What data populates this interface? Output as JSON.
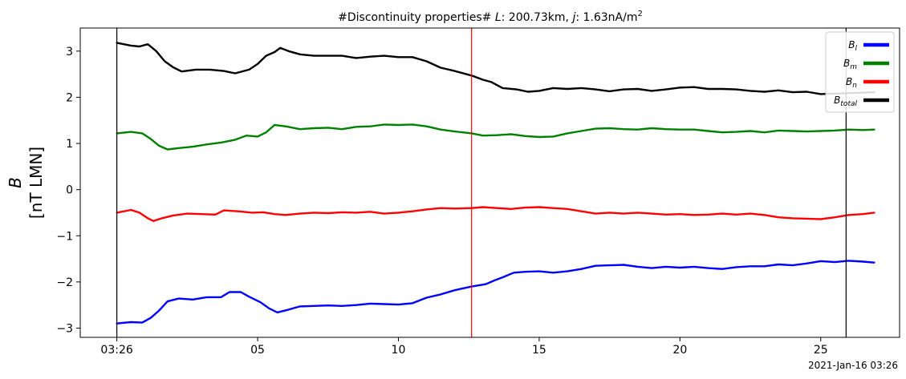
{
  "chart_data": {
    "type": "line",
    "title": "#Discontinuity properties# L: 200.73km, j: 1.63nA/m²",
    "title_parts": {
      "prefix": "#Discontinuity properties# ",
      "L_sym": "L",
      "L_val": ": 200.73km, ",
      "j_sym": "j",
      "j_val": ": 1.63nA/m",
      "j_exp": "2"
    },
    "ylabel": {
      "symbol": "B",
      "unit": "[nT LMN]"
    },
    "xlabel_date": "2021-Jan-16 03:26",
    "x_unit": "seconds after 03:26:00",
    "xlim": [
      -1.3,
      27.8
    ],
    "ylim": [
      -3.2,
      3.5
    ],
    "x_ticks": [
      {
        "value": 0,
        "label": "03:26"
      },
      {
        "value": 5,
        "label": "05"
      },
      {
        "value": 10,
        "label": "10"
      },
      {
        "value": 15,
        "label": "15"
      },
      {
        "value": 20,
        "label": "20"
      },
      {
        "value": 25,
        "label": "25"
      }
    ],
    "y_ticks": [
      {
        "value": 3,
        "label": "3"
      },
      {
        "value": 2,
        "label": "2"
      },
      {
        "value": 1,
        "label": "1"
      },
      {
        "value": 0,
        "label": "0"
      },
      {
        "value": -1,
        "label": "−1"
      },
      {
        "value": -2,
        "label": "−2"
      },
      {
        "value": -3,
        "label": "−3"
      }
    ],
    "vlines": [
      {
        "x": 0,
        "color": "#000000"
      },
      {
        "x": 12.6,
        "color": "#ff0000"
      },
      {
        "x": 25.9,
        "color": "#000000"
      }
    ],
    "legend": {
      "placement": "top-right"
    },
    "series": [
      {
        "legend_base": "B",
        "legend_sub": "l",
        "color": "#0000ff",
        "points": [
          [
            0,
            -2.9
          ],
          [
            0.5,
            -2.87
          ],
          [
            0.9,
            -2.88
          ],
          [
            1.2,
            -2.78
          ],
          [
            1.5,
            -2.62
          ],
          [
            1.8,
            -2.42
          ],
          [
            2.2,
            -2.36
          ],
          [
            2.7,
            -2.38
          ],
          [
            3.2,
            -2.33
          ],
          [
            3.7,
            -2.33
          ],
          [
            4.0,
            -2.22
          ],
          [
            4.4,
            -2.22
          ],
          [
            4.7,
            -2.32
          ],
          [
            5.1,
            -2.44
          ],
          [
            5.4,
            -2.57
          ],
          [
            5.7,
            -2.66
          ],
          [
            6.1,
            -2.6
          ],
          [
            6.5,
            -2.53
          ],
          [
            7.0,
            -2.52
          ],
          [
            7.5,
            -2.51
          ],
          [
            8.0,
            -2.52
          ],
          [
            8.5,
            -2.5
          ],
          [
            9.0,
            -2.47
          ],
          [
            9.5,
            -2.48
          ],
          [
            10.0,
            -2.49
          ],
          [
            10.5,
            -2.46
          ],
          [
            11.0,
            -2.34
          ],
          [
            11.5,
            -2.27
          ],
          [
            12.0,
            -2.18
          ],
          [
            12.6,
            -2.1
          ],
          [
            13.1,
            -2.05
          ],
          [
            13.4,
            -1.97
          ],
          [
            13.7,
            -1.9
          ],
          [
            14.1,
            -1.8
          ],
          [
            14.5,
            -1.78
          ],
          [
            15.0,
            -1.77
          ],
          [
            15.5,
            -1.8
          ],
          [
            16.0,
            -1.77
          ],
          [
            16.5,
            -1.72
          ],
          [
            17.0,
            -1.65
          ],
          [
            17.5,
            -1.64
          ],
          [
            18.0,
            -1.63
          ],
          [
            18.5,
            -1.67
          ],
          [
            19.0,
            -1.7
          ],
          [
            19.5,
            -1.67
          ],
          [
            20.0,
            -1.69
          ],
          [
            20.5,
            -1.67
          ],
          [
            21.0,
            -1.7
          ],
          [
            21.5,
            -1.72
          ],
          [
            22.0,
            -1.68
          ],
          [
            22.5,
            -1.66
          ],
          [
            23.0,
            -1.66
          ],
          [
            23.5,
            -1.62
          ],
          [
            24.0,
            -1.64
          ],
          [
            24.5,
            -1.6
          ],
          [
            25.0,
            -1.55
          ],
          [
            25.5,
            -1.57
          ],
          [
            26.0,
            -1.54
          ],
          [
            26.5,
            -1.56
          ],
          [
            26.9,
            -1.58
          ]
        ]
      },
      {
        "legend_base": "B",
        "legend_sub": "m",
        "color": "#008000",
        "points": [
          [
            0,
            1.22
          ],
          [
            0.5,
            1.25
          ],
          [
            0.9,
            1.22
          ],
          [
            1.2,
            1.1
          ],
          [
            1.5,
            0.95
          ],
          [
            1.8,
            0.87
          ],
          [
            2.2,
            0.9
          ],
          [
            2.7,
            0.93
          ],
          [
            3.2,
            0.98
          ],
          [
            3.7,
            1.02
          ],
          [
            4.2,
            1.08
          ],
          [
            4.6,
            1.17
          ],
          [
            5.0,
            1.15
          ],
          [
            5.3,
            1.24
          ],
          [
            5.6,
            1.4
          ],
          [
            6.0,
            1.37
          ],
          [
            6.5,
            1.31
          ],
          [
            7.0,
            1.33
          ],
          [
            7.5,
            1.34
          ],
          [
            8.0,
            1.31
          ],
          [
            8.5,
            1.36
          ],
          [
            9.0,
            1.37
          ],
          [
            9.5,
            1.41
          ],
          [
            10.0,
            1.4
          ],
          [
            10.5,
            1.41
          ],
          [
            11.0,
            1.37
          ],
          [
            11.5,
            1.3
          ],
          [
            12.0,
            1.26
          ],
          [
            12.6,
            1.22
          ],
          [
            13.0,
            1.17
          ],
          [
            13.5,
            1.18
          ],
          [
            14.0,
            1.2
          ],
          [
            14.5,
            1.16
          ],
          [
            15.0,
            1.14
          ],
          [
            15.5,
            1.15
          ],
          [
            16.0,
            1.22
          ],
          [
            16.5,
            1.27
          ],
          [
            17.0,
            1.32
          ],
          [
            17.5,
            1.33
          ],
          [
            18.0,
            1.31
          ],
          [
            18.5,
            1.3
          ],
          [
            19.0,
            1.33
          ],
          [
            19.5,
            1.31
          ],
          [
            20.0,
            1.3
          ],
          [
            20.5,
            1.3
          ],
          [
            21.0,
            1.27
          ],
          [
            21.5,
            1.24
          ],
          [
            22.0,
            1.25
          ],
          [
            22.5,
            1.27
          ],
          [
            23.0,
            1.24
          ],
          [
            23.5,
            1.28
          ],
          [
            24.0,
            1.27
          ],
          [
            24.5,
            1.26
          ],
          [
            25.0,
            1.27
          ],
          [
            25.5,
            1.28
          ],
          [
            26.0,
            1.3
          ],
          [
            26.5,
            1.29
          ],
          [
            26.9,
            1.3
          ]
        ]
      },
      {
        "legend_base": "B",
        "legend_sub": "n",
        "color": "#ff0000",
        "points": [
          [
            0,
            -0.5
          ],
          [
            0.5,
            -0.44
          ],
          [
            0.8,
            -0.5
          ],
          [
            1.1,
            -0.62
          ],
          [
            1.3,
            -0.68
          ],
          [
            1.6,
            -0.62
          ],
          [
            2.0,
            -0.56
          ],
          [
            2.5,
            -0.52
          ],
          [
            3.0,
            -0.53
          ],
          [
            3.5,
            -0.54
          ],
          [
            3.8,
            -0.45
          ],
          [
            4.3,
            -0.47
          ],
          [
            4.8,
            -0.5
          ],
          [
            5.2,
            -0.49
          ],
          [
            5.6,
            -0.53
          ],
          [
            6.0,
            -0.55
          ],
          [
            6.5,
            -0.52
          ],
          [
            7.0,
            -0.5
          ],
          [
            7.5,
            -0.51
          ],
          [
            8.0,
            -0.49
          ],
          [
            8.5,
            -0.5
          ],
          [
            9.0,
            -0.48
          ],
          [
            9.5,
            -0.52
          ],
          [
            10.0,
            -0.5
          ],
          [
            10.5,
            -0.47
          ],
          [
            11.0,
            -0.43
          ],
          [
            11.5,
            -0.4
          ],
          [
            12.0,
            -0.41
          ],
          [
            12.6,
            -0.4
          ],
          [
            13.0,
            -0.38
          ],
          [
            13.5,
            -0.4
          ],
          [
            14.0,
            -0.42
          ],
          [
            14.5,
            -0.39
          ],
          [
            15.0,
            -0.38
          ],
          [
            15.5,
            -0.4
          ],
          [
            16.0,
            -0.42
          ],
          [
            16.5,
            -0.47
          ],
          [
            17.0,
            -0.52
          ],
          [
            17.5,
            -0.5
          ],
          [
            18.0,
            -0.52
          ],
          [
            18.5,
            -0.5
          ],
          [
            19.0,
            -0.52
          ],
          [
            19.5,
            -0.54
          ],
          [
            20.0,
            -0.53
          ],
          [
            20.5,
            -0.55
          ],
          [
            21.0,
            -0.54
          ],
          [
            21.5,
            -0.52
          ],
          [
            22.0,
            -0.54
          ],
          [
            22.5,
            -0.52
          ],
          [
            23.0,
            -0.55
          ],
          [
            23.5,
            -0.6
          ],
          [
            24.0,
            -0.62
          ],
          [
            24.5,
            -0.63
          ],
          [
            25.0,
            -0.64
          ],
          [
            25.5,
            -0.6
          ],
          [
            26.0,
            -0.55
          ],
          [
            26.5,
            -0.53
          ],
          [
            26.9,
            -0.5
          ]
        ]
      },
      {
        "legend_base": "B",
        "legend_sub": "total",
        "color": "#000000",
        "points": [
          [
            0,
            3.18
          ],
          [
            0.5,
            3.12
          ],
          [
            0.8,
            3.1
          ],
          [
            1.1,
            3.15
          ],
          [
            1.4,
            3.0
          ],
          [
            1.7,
            2.78
          ],
          [
            2.0,
            2.65
          ],
          [
            2.3,
            2.56
          ],
          [
            2.8,
            2.6
          ],
          [
            3.3,
            2.6
          ],
          [
            3.8,
            2.57
          ],
          [
            4.2,
            2.52
          ],
          [
            4.7,
            2.6
          ],
          [
            5.0,
            2.72
          ],
          [
            5.3,
            2.9
          ],
          [
            5.6,
            2.98
          ],
          [
            5.8,
            3.07
          ],
          [
            6.1,
            3.0
          ],
          [
            6.5,
            2.93
          ],
          [
            7.0,
            2.9
          ],
          [
            7.5,
            2.9
          ],
          [
            8.0,
            2.9
          ],
          [
            8.5,
            2.85
          ],
          [
            9.0,
            2.88
          ],
          [
            9.5,
            2.9
          ],
          [
            10.0,
            2.87
          ],
          [
            10.5,
            2.87
          ],
          [
            11.0,
            2.78
          ],
          [
            11.5,
            2.64
          ],
          [
            12.0,
            2.57
          ],
          [
            12.6,
            2.47
          ],
          [
            13.0,
            2.38
          ],
          [
            13.3,
            2.33
          ],
          [
            13.7,
            2.2
          ],
          [
            14.2,
            2.17
          ],
          [
            14.6,
            2.12
          ],
          [
            15.0,
            2.14
          ],
          [
            15.5,
            2.2
          ],
          [
            16.0,
            2.18
          ],
          [
            16.5,
            2.2
          ],
          [
            17.0,
            2.17
          ],
          [
            17.5,
            2.13
          ],
          [
            18.0,
            2.17
          ],
          [
            18.5,
            2.18
          ],
          [
            19.0,
            2.14
          ],
          [
            19.5,
            2.17
          ],
          [
            20.0,
            2.21
          ],
          [
            20.5,
            2.22
          ],
          [
            21.0,
            2.18
          ],
          [
            21.5,
            2.18
          ],
          [
            22.0,
            2.17
          ],
          [
            22.5,
            2.14
          ],
          [
            23.0,
            2.12
          ],
          [
            23.5,
            2.15
          ],
          [
            24.0,
            2.11
          ],
          [
            24.5,
            2.12
          ],
          [
            25.0,
            2.07
          ],
          [
            25.5,
            2.08
          ],
          [
            26.0,
            2.09
          ],
          [
            26.5,
            2.1
          ],
          [
            26.9,
            2.11
          ]
        ]
      }
    ]
  }
}
